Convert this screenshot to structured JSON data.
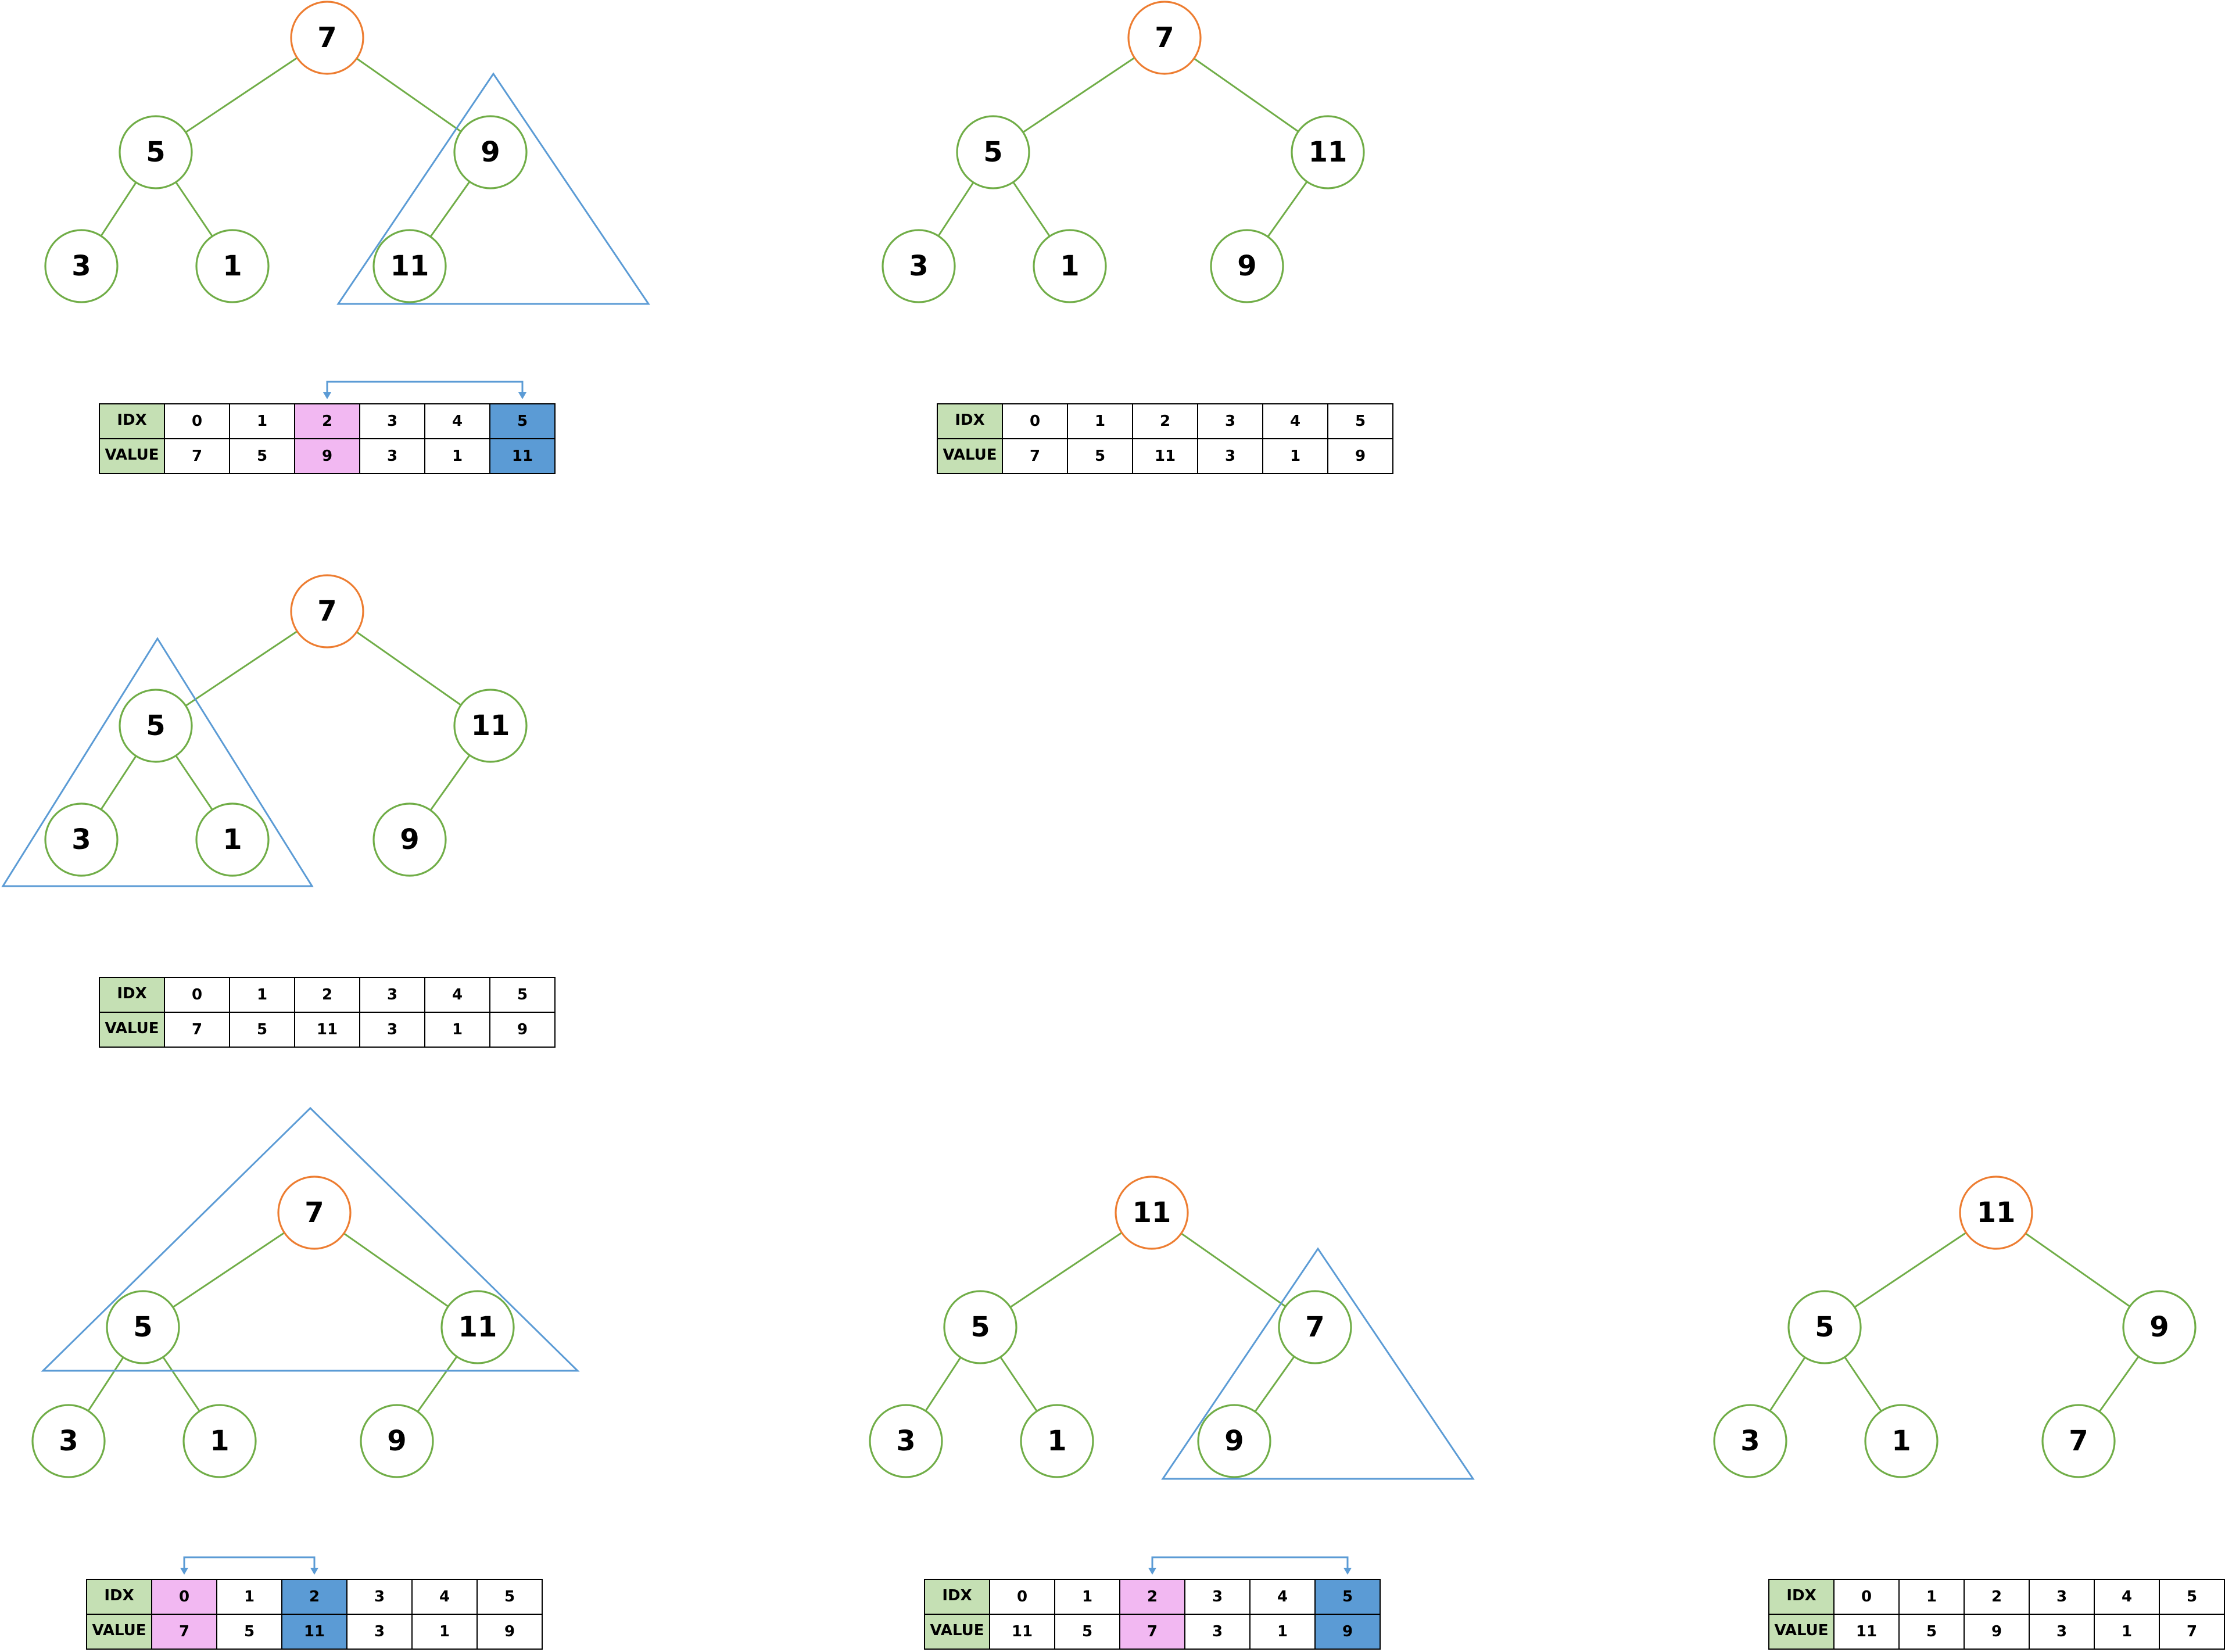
{
  "colors": {
    "edge": "#70ad47",
    "node_border": "#70ad47",
    "root_border": "#ed7d31",
    "subtree_outline": "#5b9bd5",
    "header_fill": "#c5e0b4",
    "source_fill": "#f2b8f2",
    "target_fill": "#5b9bd5"
  },
  "table_labels": {
    "idx": "IDX",
    "value": "VALUE"
  },
  "panels": [
    {
      "id": "panel-1",
      "nodes": [
        "7",
        "5",
        "9",
        "3",
        "1",
        "11"
      ],
      "indices": [
        "0",
        "1",
        "2",
        "3",
        "4",
        "5"
      ],
      "values": [
        "7",
        "5",
        "9",
        "3",
        "1",
        "11"
      ],
      "highlight": {
        "source": 2,
        "target": 5
      },
      "subtree": "node-2"
    },
    {
      "id": "panel-2",
      "nodes": [
        "7",
        "5",
        "11",
        "3",
        "1",
        "9"
      ],
      "indices": [
        "0",
        "1",
        "2",
        "3",
        "4",
        "5"
      ],
      "values": [
        "7",
        "5",
        "11",
        "3",
        "1",
        "9"
      ],
      "highlight": null,
      "subtree": null
    },
    {
      "id": "panel-3",
      "nodes": [
        "7",
        "5",
        "11",
        "3",
        "1",
        "9"
      ],
      "indices": [
        "0",
        "1",
        "2",
        "3",
        "4",
        "5"
      ],
      "values": [
        "7",
        "5",
        "11",
        "3",
        "1",
        "9"
      ],
      "highlight": null,
      "subtree": "node-1"
    },
    {
      "id": "panel-4",
      "nodes": [
        "7",
        "5",
        "11",
        "3",
        "1",
        "9"
      ],
      "indices": [
        "0",
        "1",
        "2",
        "3",
        "4",
        "5"
      ],
      "values": [
        "7",
        "5",
        "11",
        "3",
        "1",
        "9"
      ],
      "highlight": {
        "source": 0,
        "target": 2
      },
      "subtree": "node-0"
    },
    {
      "id": "panel-5",
      "nodes": [
        "11",
        "5",
        "7",
        "3",
        "1",
        "9"
      ],
      "indices": [
        "0",
        "1",
        "2",
        "3",
        "4",
        "5"
      ],
      "values": [
        "11",
        "5",
        "7",
        "3",
        "1",
        "9"
      ],
      "highlight": {
        "source": 2,
        "target": 5
      },
      "subtree": "node-2"
    },
    {
      "id": "panel-6",
      "nodes": [
        "11",
        "5",
        "9",
        "3",
        "1",
        "7"
      ],
      "indices": [
        "0",
        "1",
        "2",
        "3",
        "4",
        "5"
      ],
      "values": [
        "11",
        "5",
        "9",
        "3",
        "1",
        "7"
      ],
      "highlight": null,
      "subtree": null
    }
  ]
}
